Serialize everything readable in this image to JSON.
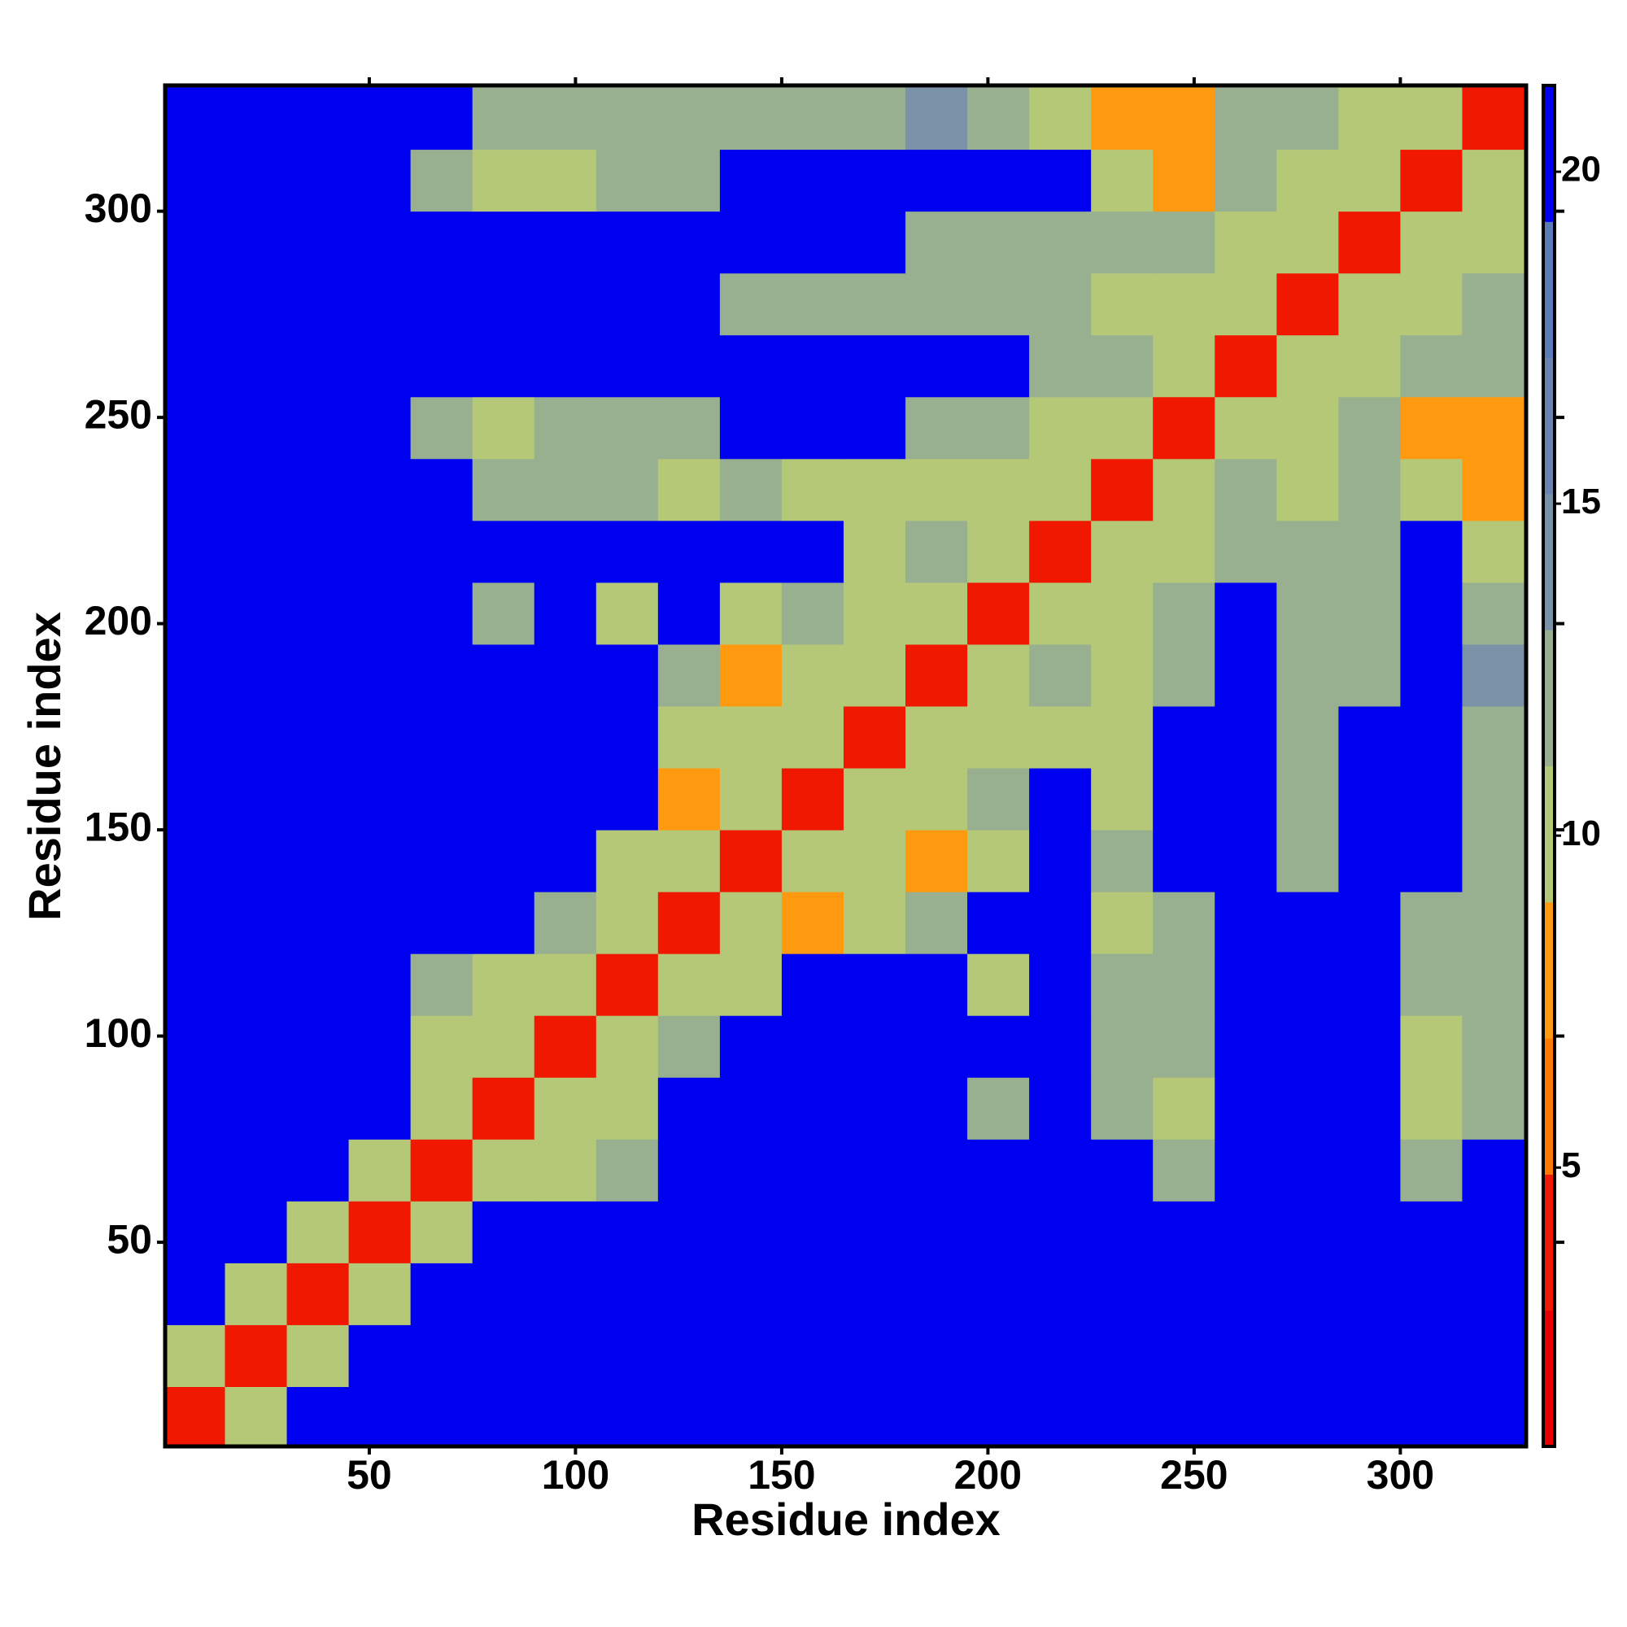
{
  "chart_data": {
    "type": "heatmap",
    "x_label": "Residue index",
    "y_label": "Residue index",
    "x": [
      7.5,
      22.5,
      37.5,
      52.5,
      67.5,
      82.5,
      97.5,
      112.5,
      127.5,
      142.5,
      157.5,
      172.5,
      187.5,
      202.5,
      217.5,
      232.5,
      247.5,
      262.5,
      277.5,
      292.5,
      307.5,
      322.5
    ],
    "y": [
      7.5,
      22.5,
      37.5,
      52.5,
      67.5,
      82.5,
      97.5,
      112.5,
      127.5,
      142.5,
      157.5,
      172.5,
      187.5,
      202.5,
      217.5,
      232.5,
      247.5,
      262.5,
      277.5,
      292.5,
      307.5,
      322.5
    ],
    "z": [
      [
        3,
        10,
        21,
        21,
        21,
        21,
        21,
        21,
        21,
        21,
        21,
        21,
        21,
        21,
        21,
        21,
        21,
        21,
        21,
        21,
        21,
        21
      ],
      [
        10,
        3,
        10,
        21,
        21,
        21,
        21,
        21,
        21,
        21,
        21,
        21,
        21,
        21,
        21,
        21,
        21,
        21,
        21,
        21,
        21,
        21
      ],
      [
        21,
        10,
        3,
        10,
        21,
        21,
        21,
        21,
        21,
        21,
        21,
        21,
        21,
        21,
        21,
        21,
        21,
        21,
        21,
        21,
        21,
        21
      ],
      [
        21,
        21,
        10,
        3,
        10,
        21,
        21,
        21,
        21,
        21,
        21,
        21,
        21,
        21,
        21,
        21,
        21,
        21,
        21,
        21,
        21,
        21
      ],
      [
        21,
        21,
        21,
        10,
        3,
        10,
        11,
        13,
        21,
        21,
        21,
        21,
        21,
        21,
        21,
        21,
        13,
        21,
        21,
        21,
        12,
        21
      ],
      [
        21,
        21,
        21,
        21,
        10,
        3,
        10,
        11,
        21,
        21,
        21,
        21,
        21,
        12,
        21,
        13,
        11,
        21,
        21,
        21,
        11,
        13
      ],
      [
        21,
        21,
        21,
        21,
        11,
        10,
        3,
        10,
        12,
        21,
        21,
        21,
        21,
        21,
        21,
        12,
        12,
        21,
        21,
        21,
        10,
        13
      ],
      [
        21,
        21,
        21,
        21,
        13,
        11,
        10,
        3,
        10,
        11,
        21,
        21,
        21,
        11,
        21,
        12,
        12,
        21,
        21,
        21,
        13,
        13
      ],
      [
        21,
        21,
        21,
        21,
        21,
        21,
        12,
        10,
        3,
        10,
        9,
        11,
        12,
        21,
        21,
        11,
        13,
        21,
        21,
        21,
        13,
        13
      ],
      [
        21,
        21,
        21,
        21,
        21,
        21,
        21,
        11,
        10,
        3,
        10,
        10,
        9,
        11,
        21,
        12,
        21,
        21,
        13,
        21,
        21,
        13
      ],
      [
        21,
        21,
        21,
        21,
        21,
        21,
        21,
        21,
        9,
        10,
        3,
        10,
        11,
        12,
        21,
        11,
        21,
        21,
        13,
        21,
        21,
        13
      ],
      [
        21,
        21,
        21,
        21,
        21,
        21,
        21,
        21,
        11,
        10,
        10,
        3,
        10,
        11,
        11,
        11,
        21,
        21,
        12,
        21,
        21,
        12
      ],
      [
        21,
        21,
        21,
        21,
        21,
        21,
        21,
        21,
        12,
        9,
        11,
        10,
        3,
        10,
        12,
        10,
        12,
        21,
        13,
        13,
        21,
        14
      ],
      [
        21,
        21,
        21,
        21,
        21,
        12,
        21,
        11,
        21,
        11,
        12,
        11,
        10,
        3,
        10,
        11,
        12,
        21,
        12,
        12,
        21,
        12
      ],
      [
        21,
        21,
        21,
        21,
        21,
        21,
        21,
        21,
        21,
        21,
        21,
        11,
        12,
        10,
        3,
        10,
        11,
        12,
        12,
        13,
        21,
        11
      ],
      [
        21,
        21,
        21,
        21,
        21,
        13,
        12,
        12,
        11,
        12,
        11,
        11,
        10,
        11,
        10,
        3,
        10,
        12,
        11,
        12,
        11,
        7
      ],
      [
        21,
        21,
        21,
        21,
        13,
        11,
        12,
        12,
        13,
        21,
        21,
        21,
        12,
        12,
        11,
        10,
        3,
        10,
        11,
        12,
        7,
        8
      ],
      [
        21,
        21,
        21,
        21,
        21,
        21,
        21,
        21,
        21,
        21,
        21,
        21,
        21,
        21,
        12,
        12,
        10,
        3,
        10,
        11,
        12,
        13
      ],
      [
        21,
        21,
        21,
        21,
        21,
        21,
        21,
        21,
        21,
        13,
        13,
        12,
        13,
        12,
        12,
        11,
        11,
        10,
        3,
        10,
        10,
        12
      ],
      [
        21,
        21,
        21,
        21,
        21,
        21,
        21,
        21,
        21,
        21,
        21,
        21,
        13,
        12,
        13,
        12,
        12,
        11,
        10,
        3,
        10,
        11
      ],
      [
        21,
        21,
        21,
        21,
        12,
        11,
        10,
        13,
        13,
        21,
        21,
        21,
        21,
        21,
        21,
        11,
        7,
        12,
        10,
        10,
        3,
        10
      ],
      [
        21,
        21,
        21,
        21,
        21,
        13,
        13,
        13,
        13,
        13,
        13,
        12,
        14,
        12,
        11,
        7,
        8,
        13,
        12,
        11,
        10,
        3
      ]
    ],
    "xlim": [
      0.5,
      330.5
    ],
    "ylim": [
      0.5,
      330.5
    ],
    "xticks": [
      50,
      100,
      150,
      200,
      250,
      300
    ],
    "yticks": [
      50,
      100,
      150,
      200,
      250,
      300
    ],
    "clim": [
      0.8,
      21.3
    ],
    "cticks": [
      5,
      10,
      15,
      20
    ],
    "colors": [
      "#e80000",
      "#f01800",
      "#ff7a00",
      "#ff9a10",
      "#b4c878",
      "#98b090",
      "#7a92a8",
      "#6a84b0",
      "#5a7ab8",
      "#0000f0"
    ]
  }
}
